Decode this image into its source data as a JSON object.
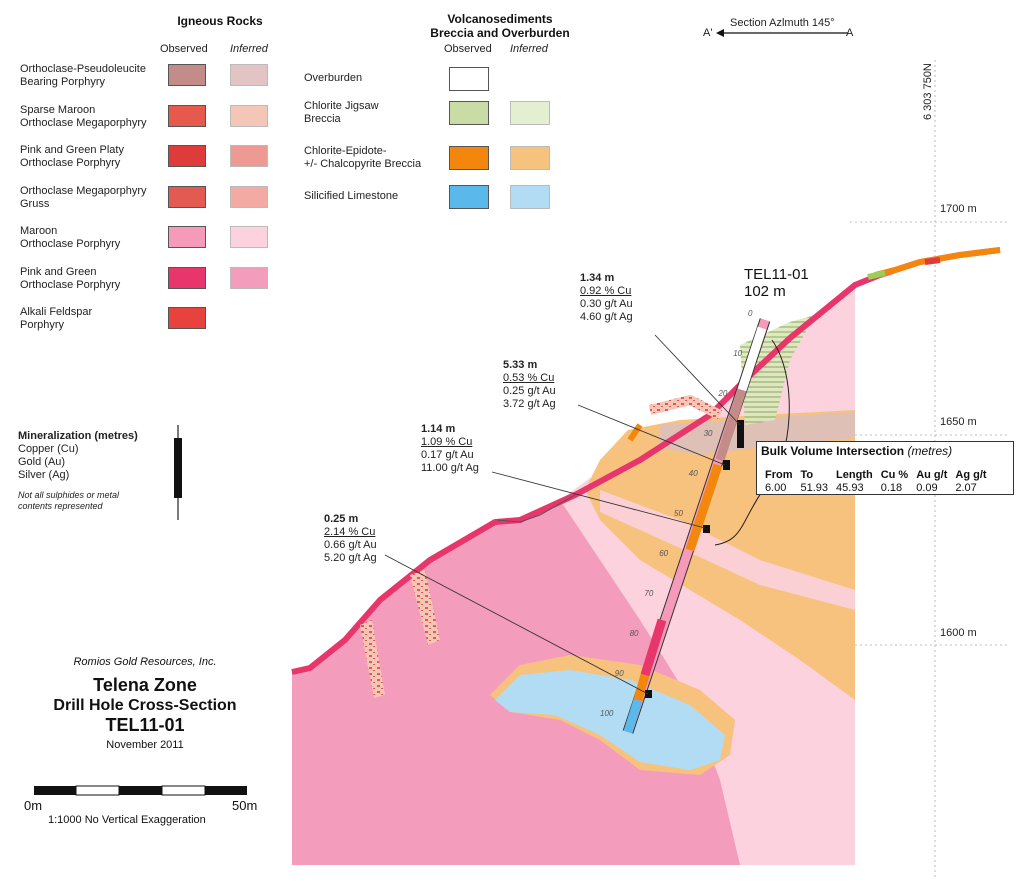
{
  "legend": {
    "igneous_title": "Igneous Rocks",
    "volcano_title_1": "Volcanosediments",
    "volcano_title_2": "Breccia and Overburden",
    "observed": "Observed",
    "inferred": "Inferred",
    "igneous_units": [
      {
        "line1": "Orthoclase-Pseudoleucite",
        "line2": "Bearing Porphyry",
        "observed_color": "#c48c88",
        "inferred_color": "#e2c4c4"
      },
      {
        "line1": "Sparse Maroon",
        "line2": "Orthoclase Megaporphyry",
        "observed_color": "#e55a4c",
        "inferred_color": "#f4c6b8"
      },
      {
        "line1": "Pink and Green Platy",
        "line2": "Orthoclase Porphyry",
        "observed_color": "#e03b3b",
        "inferred_color": "#ee9a92"
      },
      {
        "line1": "Orthoclase Megaporphyry",
        "line2": "Gruss",
        "observed_color": "#e35a52",
        "inferred_color": "#f2aaa2"
      },
      {
        "line1": "Maroon",
        "line2": "Orthoclase Porphyry",
        "observed_color": "#f59ab8",
        "inferred_color": "#fbd2de"
      },
      {
        "line1": "Pink and Green",
        "line2": "Orthoclase Porphyry",
        "observed_color": "#e8356c",
        "inferred_color": "#f49cbc"
      },
      {
        "line1": "Alkali Feldspar",
        "line2": "Porphyry",
        "observed_color": "#e8423e",
        "inferred_color": ""
      }
    ],
    "volcano_units": [
      {
        "line1": "Overburden",
        "line2": "",
        "observed_color": "#ffffff",
        "inferred_color": ""
      },
      {
        "line1": "Chlorite Jigsaw",
        "line2": "Breccia",
        "observed_color": "#c9dca6",
        "inferred_color": "#e4eed0"
      },
      {
        "line1": "Chlorite-Epidote-",
        "line2": "+/- Chalcopyrite Breccia",
        "observed_color": "#f3870e",
        "inferred_color": "#f7c27e"
      },
      {
        "line1": "Silicified Limestone",
        "line2": "",
        "observed_color": "#5bb8ea",
        "inferred_color": "#b2dcf4"
      }
    ]
  },
  "mineralization": {
    "title": "Mineralization (metres)",
    "items": [
      "Copper (Cu)",
      "Gold (Au)",
      "Silver (Ag)"
    ],
    "note_1": "Not all sulphides or metal",
    "note_2": "contents represented"
  },
  "section": {
    "azimuth_label": "Section Azlmuth 145°",
    "a_prime": "A'",
    "a": "A",
    "northing": "6 303 750N",
    "elevations": [
      "1700 m",
      "1650 m",
      "1600 m"
    ]
  },
  "drill_hole": {
    "name": "TEL11-01",
    "length": "102  m",
    "depth_ticks": [
      "0",
      "10",
      "20",
      "30",
      "40",
      "50",
      "60",
      "70",
      "80",
      "90",
      "100"
    ]
  },
  "intercepts": [
    {
      "width": "1.34 m",
      "cu": "0.92 % Cu",
      "au": "0.30 g/t Au",
      "ag": "4.60 g/t Ag"
    },
    {
      "width": "5.33 m",
      "cu": "0.53 % Cu",
      "au": "0.25 g/t Au",
      "ag": "3.72 g/t Ag"
    },
    {
      "width": "1.14 m",
      "cu": "1.09 % Cu",
      "au": "0.17 g/t Au",
      "ag": "11.00 g/t Ag"
    },
    {
      "width": "0.25 m",
      "cu": "2.14 % Cu",
      "au": "0.66 g/t Au",
      "ag": "5.20 g/t Ag"
    }
  ],
  "bulk": {
    "title": "Bulk Volume Intersection",
    "unit": "(metres)",
    "headers": [
      "From",
      "To",
      "Length",
      "Cu %",
      "Au g/t",
      "Ag g/t"
    ],
    "values": [
      "6.00",
      "51.93",
      "45.93",
      "0.18",
      "0.09",
      "2.07"
    ]
  },
  "title_block": {
    "company": "Romios Gold Resources, Inc.",
    "line1": "Telena Zone",
    "line2": "Drill Hole Cross-Section",
    "line3": "TEL11-01",
    "date": "November 2011",
    "scale_left": "0m",
    "scale_right": "50m",
    "scale_note": "1:1000  No Vertical Exaggeration"
  }
}
